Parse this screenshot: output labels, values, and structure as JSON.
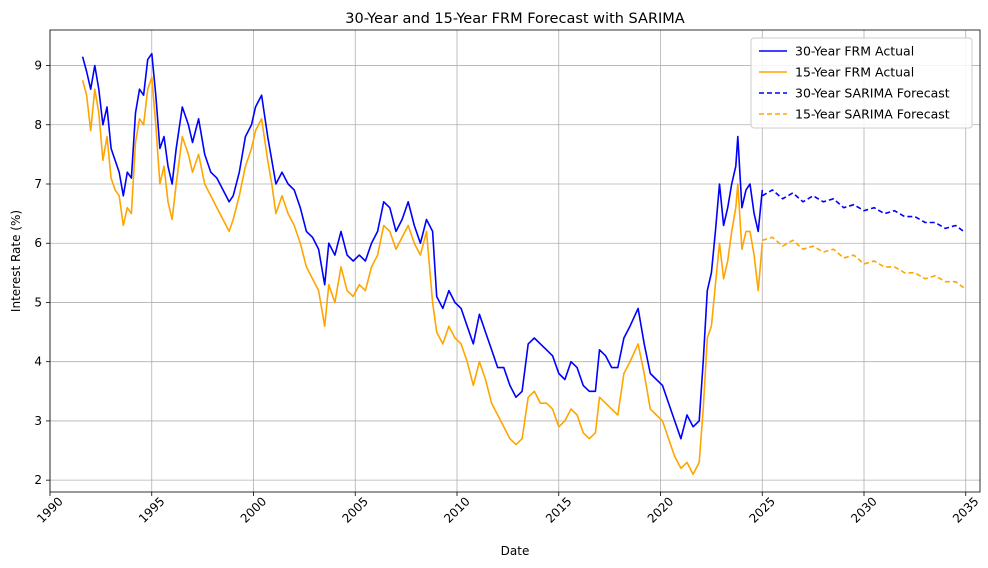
{
  "chart_data": {
    "type": "line",
    "title": "30-Year and 15-Year FRM Forecast with SARIMA",
    "xlabel": "Date",
    "ylabel": "Interest Rate (%)",
    "xlim": [
      1990.0,
      2035.7
    ],
    "ylim": [
      1.8,
      9.6
    ],
    "xticks": [
      1990,
      1995,
      2000,
      2005,
      2010,
      2015,
      2020,
      2025,
      2030,
      2035
    ],
    "yticks": [
      2,
      3,
      4,
      5,
      6,
      7,
      8,
      9
    ],
    "grid": true,
    "legend_position": "top-right",
    "series": [
      {
        "name": "30-Year FRM Actual",
        "color": "#0000ff",
        "dash": "solid",
        "x": [
          1991.6,
          1991.8,
          1992.0,
          1992.2,
          1992.4,
          1992.6,
          1992.8,
          1993.0,
          1993.2,
          1993.4,
          1993.6,
          1993.8,
          1994.0,
          1994.2,
          1994.4,
          1994.6,
          1994.8,
          1995.0,
          1995.2,
          1995.4,
          1995.6,
          1995.8,
          1996.0,
          1996.2,
          1996.5,
          1996.8,
          1997.0,
          1997.3,
          1997.6,
          1997.9,
          1998.2,
          1998.5,
          1998.8,
          1999.0,
          1999.3,
          1999.6,
          1999.9,
          2000.1,
          2000.4,
          2000.7,
          2000.9,
          2001.1,
          2001.4,
          2001.7,
          2002.0,
          2002.3,
          2002.6,
          2002.9,
          2003.2,
          2003.5,
          2003.7,
          2004.0,
          2004.3,
          2004.6,
          2004.9,
          2005.2,
          2005.5,
          2005.8,
          2006.1,
          2006.4,
          2006.7,
          2007.0,
          2007.3,
          2007.6,
          2007.9,
          2008.2,
          2008.5,
          2008.8,
          2009.0,
          2009.3,
          2009.6,
          2009.9,
          2010.2,
          2010.5,
          2010.8,
          2011.1,
          2011.4,
          2011.7,
          2012.0,
          2012.3,
          2012.6,
          2012.9,
          2013.2,
          2013.5,
          2013.8,
          2014.1,
          2014.4,
          2014.7,
          2015.0,
          2015.3,
          2015.6,
          2015.9,
          2016.2,
          2016.5,
          2016.8,
          2017.0,
          2017.3,
          2017.6,
          2017.9,
          2018.2,
          2018.5,
          2018.9,
          2019.2,
          2019.5,
          2019.8,
          2020.1,
          2020.4,
          2020.7,
          2021.0,
          2021.3,
          2021.6,
          2021.9,
          2022.1,
          2022.3,
          2022.5,
          2022.7,
          2022.9,
          2023.1,
          2023.3,
          2023.5,
          2023.7,
          2023.8,
          2024.0,
          2024.2,
          2024.4,
          2024.6,
          2024.8,
          2025.0
        ],
        "y": [
          9.15,
          8.9,
          8.6,
          9.0,
          8.6,
          8.0,
          8.3,
          7.6,
          7.4,
          7.2,
          6.8,
          7.2,
          7.1,
          8.2,
          8.6,
          8.5,
          9.1,
          9.2,
          8.5,
          7.6,
          7.8,
          7.3,
          7.0,
          7.6,
          8.3,
          8.0,
          7.7,
          8.1,
          7.5,
          7.2,
          7.1,
          6.9,
          6.7,
          6.8,
          7.2,
          7.8,
          8.0,
          8.3,
          8.5,
          7.8,
          7.4,
          7.0,
          7.2,
          7.0,
          6.9,
          6.6,
          6.2,
          6.1,
          5.9,
          5.3,
          6.0,
          5.8,
          6.2,
          5.8,
          5.7,
          5.8,
          5.7,
          6.0,
          6.2,
          6.7,
          6.6,
          6.2,
          6.4,
          6.7,
          6.3,
          6.0,
          6.4,
          6.2,
          5.1,
          4.9,
          5.2,
          5.0,
          4.9,
          4.6,
          4.3,
          4.8,
          4.5,
          4.2,
          3.9,
          3.9,
          3.6,
          3.4,
          3.5,
          4.3,
          4.4,
          4.3,
          4.2,
          4.1,
          3.8,
          3.7,
          4.0,
          3.9,
          3.6,
          3.5,
          3.5,
          4.2,
          4.1,
          3.9,
          3.9,
          4.4,
          4.6,
          4.9,
          4.3,
          3.8,
          3.7,
          3.6,
          3.3,
          3.0,
          2.7,
          3.1,
          2.9,
          3.0,
          4.0,
          5.2,
          5.5,
          6.2,
          7.0,
          6.3,
          6.6,
          7.0,
          7.3,
          7.8,
          6.6,
          6.9,
          7.0,
          6.5,
          6.2,
          6.9
        ],
        "values_hint": ""
      },
      {
        "name": "15-Year FRM Actual",
        "color": "#ffa500",
        "dash": "solid",
        "x": [
          1991.6,
          1991.8,
          1992.0,
          1992.2,
          1992.4,
          1992.6,
          1992.8,
          1993.0,
          1993.2,
          1993.4,
          1993.6,
          1993.8,
          1994.0,
          1994.2,
          1994.4,
          1994.6,
          1994.8,
          1995.0,
          1995.2,
          1995.4,
          1995.6,
          1995.8,
          1996.0,
          1996.2,
          1996.5,
          1996.8,
          1997.0,
          1997.3,
          1997.6,
          1997.9,
          1998.2,
          1998.5,
          1998.8,
          1999.0,
          1999.3,
          1999.6,
          1999.9,
          2000.1,
          2000.4,
          2000.7,
          2000.9,
          2001.1,
          2001.4,
          2001.7,
          2002.0,
          2002.3,
          2002.6,
          2002.9,
          2003.2,
          2003.5,
          2003.7,
          2004.0,
          2004.3,
          2004.6,
          2004.9,
          2005.2,
          2005.5,
          2005.8,
          2006.1,
          2006.4,
          2006.7,
          2007.0,
          2007.3,
          2007.6,
          2007.9,
          2008.2,
          2008.5,
          2008.8,
          2009.0,
          2009.3,
          2009.6,
          2009.9,
          2010.2,
          2010.5,
          2010.8,
          2011.1,
          2011.4,
          2011.7,
          2012.0,
          2012.3,
          2012.6,
          2012.9,
          2013.2,
          2013.5,
          2013.8,
          2014.1,
          2014.4,
          2014.7,
          2015.0,
          2015.3,
          2015.6,
          2015.9,
          2016.2,
          2016.5,
          2016.8,
          2017.0,
          2017.3,
          2017.6,
          2017.9,
          2018.2,
          2018.5,
          2018.9,
          2019.2,
          2019.5,
          2019.8,
          2020.1,
          2020.4,
          2020.7,
          2021.0,
          2021.3,
          2021.6,
          2021.9,
          2022.1,
          2022.3,
          2022.5,
          2022.7,
          2022.9,
          2023.1,
          2023.3,
          2023.5,
          2023.7,
          2023.8,
          2024.0,
          2024.2,
          2024.4,
          2024.6,
          2024.8,
          2025.0
        ],
        "y": [
          8.75,
          8.5,
          7.9,
          8.6,
          8.2,
          7.4,
          7.8,
          7.1,
          6.9,
          6.8,
          6.3,
          6.6,
          6.5,
          7.7,
          8.1,
          8.0,
          8.6,
          8.8,
          8.0,
          7.0,
          7.3,
          6.7,
          6.4,
          7.0,
          7.8,
          7.5,
          7.2,
          7.5,
          7.0,
          6.8,
          6.6,
          6.4,
          6.2,
          6.4,
          6.8,
          7.3,
          7.6,
          7.9,
          8.1,
          7.4,
          7.0,
          6.5,
          6.8,
          6.5,
          6.3,
          6.0,
          5.6,
          5.4,
          5.2,
          4.6,
          5.3,
          5.0,
          5.6,
          5.2,
          5.1,
          5.3,
          5.2,
          5.6,
          5.8,
          6.3,
          6.2,
          5.9,
          6.1,
          6.3,
          6.0,
          5.8,
          6.2,
          5.0,
          4.5,
          4.3,
          4.6,
          4.4,
          4.3,
          4.0,
          3.6,
          4.0,
          3.7,
          3.3,
          3.1,
          2.9,
          2.7,
          2.6,
          2.7,
          3.4,
          3.5,
          3.3,
          3.3,
          3.2,
          2.9,
          3.0,
          3.2,
          3.1,
          2.8,
          2.7,
          2.8,
          3.4,
          3.3,
          3.2,
          3.1,
          3.8,
          4.0,
          4.3,
          3.8,
          3.2,
          3.1,
          3.0,
          2.7,
          2.4,
          2.2,
          2.3,
          2.1,
          2.3,
          3.2,
          4.4,
          4.6,
          5.3,
          6.0,
          5.4,
          5.7,
          6.2,
          6.6,
          7.0,
          5.9,
          6.2,
          6.2,
          5.8,
          5.2,
          6.0
        ],
        "values_hint": ""
      },
      {
        "name": "30-Year SARIMA Forecast",
        "color": "#0000ff",
        "dash": "dashed",
        "x": [
          2025.0,
          2025.5,
          2026.0,
          2026.5,
          2027.0,
          2027.5,
          2028.0,
          2028.5,
          2029.0,
          2029.5,
          2030.0,
          2030.5,
          2031.0,
          2031.5,
          2032.0,
          2032.5,
          2033.0,
          2033.5,
          2034.0,
          2034.5,
          2034.9
        ],
        "y": [
          6.8,
          6.9,
          6.75,
          6.85,
          6.7,
          6.8,
          6.7,
          6.75,
          6.6,
          6.65,
          6.55,
          6.6,
          6.5,
          6.55,
          6.45,
          6.45,
          6.35,
          6.35,
          6.25,
          6.3,
          6.2
        ]
      },
      {
        "name": "15-Year SARIMA Forecast",
        "color": "#ffa500",
        "dash": "dashed",
        "x": [
          2025.0,
          2025.5,
          2026.0,
          2026.5,
          2027.0,
          2027.5,
          2028.0,
          2028.5,
          2029.0,
          2029.5,
          2030.0,
          2030.5,
          2031.0,
          2031.5,
          2032.0,
          2032.5,
          2033.0,
          2033.5,
          2034.0,
          2034.5,
          2034.9
        ],
        "y": [
          6.05,
          6.1,
          5.95,
          6.05,
          5.9,
          5.95,
          5.85,
          5.9,
          5.75,
          5.8,
          5.65,
          5.7,
          5.6,
          5.6,
          5.5,
          5.5,
          5.4,
          5.45,
          5.35,
          5.35,
          5.25
        ]
      }
    ]
  }
}
